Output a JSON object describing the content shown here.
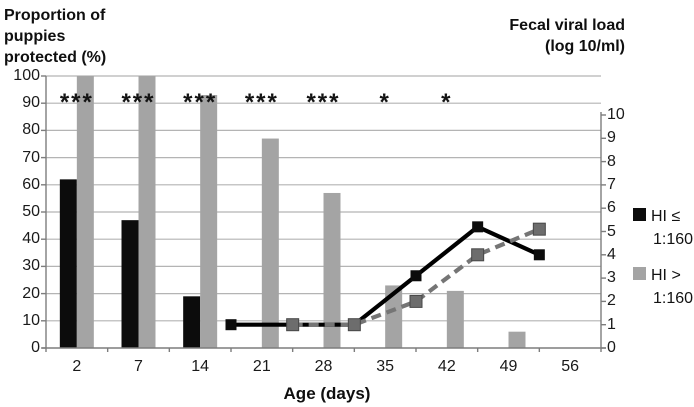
{
  "figure": {
    "left_axis_title_lines": [
      "Proportion of",
      "puppies",
      "protected (%)"
    ],
    "right_axis_title_lines": [
      "Fecal viral load",
      "(log 10/ml)"
    ],
    "x_axis_title": "Age (days)"
  },
  "legend": {
    "items": [
      {
        "line1": "HI ≤",
        "line2": "1:160",
        "swatch_color": "#0c0c0c"
      },
      {
        "line1": "HI >",
        "line2": "1:160",
        "swatch_color": "#a4a4a4"
      }
    ]
  },
  "chart_data": {
    "type": "bar+line",
    "subtype": "dual-axis combo: grouped bars on left % axis, lines on right log-load axis",
    "categories": [
      "2",
      "7",
      "14",
      "21",
      "28",
      "35",
      "42",
      "49",
      "56"
    ],
    "x_axis_label": "Age (days)",
    "left_axis": {
      "label": "Proportion of puppies protected (%)",
      "min": 0,
      "max": 100,
      "step": 10,
      "ticks": [
        100,
        90,
        80,
        70,
        60,
        50,
        40,
        30,
        20,
        10,
        0
      ]
    },
    "right_axis": {
      "label": "Fecal viral load (log 10/ml)",
      "min": 0,
      "max": 10,
      "step": 1,
      "ticks": [
        10,
        9,
        8,
        7,
        6,
        5,
        4,
        3,
        2,
        1,
        0
      ]
    },
    "bar_series": [
      {
        "name": "HI ≤ 1:160",
        "axis": "left",
        "color": "#0c0c0c",
        "values": [
          62,
          47,
          19,
          0,
          0,
          0,
          0,
          0,
          0
        ]
      },
      {
        "name": "HI > 1:160",
        "axis": "left",
        "color": "#a4a4a4",
        "values": [
          100,
          100,
          93,
          77,
          57,
          23,
          21,
          6,
          0
        ]
      }
    ],
    "line_series": [
      {
        "name": "HI ≤ 1:160",
        "axis": "right",
        "style": "solid",
        "color": "#000000",
        "marker_color": "#0c0c0c",
        "points": [
          {
            "between": [
              "14",
              "21"
            ],
            "slot": 3,
            "value": 1
          },
          {
            "between": [
              "21",
              "28"
            ],
            "slot": 4,
            "value": 1
          },
          {
            "between": [
              "28",
              "35"
            ],
            "slot": 5,
            "value": 1
          },
          {
            "between": [
              "35",
              "42"
            ],
            "slot": 6,
            "value": 3.1
          },
          {
            "between": [
              "42",
              "49"
            ],
            "slot": 7,
            "value": 5.2
          },
          {
            "between": [
              "49",
              "56"
            ],
            "slot": 8,
            "value": 4
          }
        ]
      },
      {
        "name": "HI > 1:160",
        "axis": "right",
        "style": "dashed",
        "color": "#757575",
        "marker_color": "#6d6d6d",
        "points": [
          {
            "between": [
              "21",
              "28"
            ],
            "slot": 4,
            "value": 1
          },
          {
            "between": [
              "28",
              "35"
            ],
            "slot": 5,
            "value": 1
          },
          {
            "between": [
              "35",
              "42"
            ],
            "slot": 6,
            "value": 2
          },
          {
            "between": [
              "42",
              "49"
            ],
            "slot": 7,
            "value": 4
          },
          {
            "between": [
              "49",
              "56"
            ],
            "slot": 8,
            "value": 5.1
          }
        ]
      }
    ],
    "significance_markers": [
      {
        "category": "2",
        "symbol": "***"
      },
      {
        "category": "7",
        "symbol": "***"
      },
      {
        "category": "14",
        "symbol": "***"
      },
      {
        "category": "21",
        "symbol": "***"
      },
      {
        "category": "28",
        "symbol": "***"
      },
      {
        "category": "35",
        "symbol": "*"
      },
      {
        "category": "42",
        "symbol": "*"
      }
    ],
    "layout_hints": {
      "grid": "horizontal gridlines at each 10% of left axis",
      "legend_position": "right, outside plot",
      "background": "#ffffff",
      "grid_color": "#b4b4b4",
      "axis_color": "#7d7d7d"
    }
  }
}
